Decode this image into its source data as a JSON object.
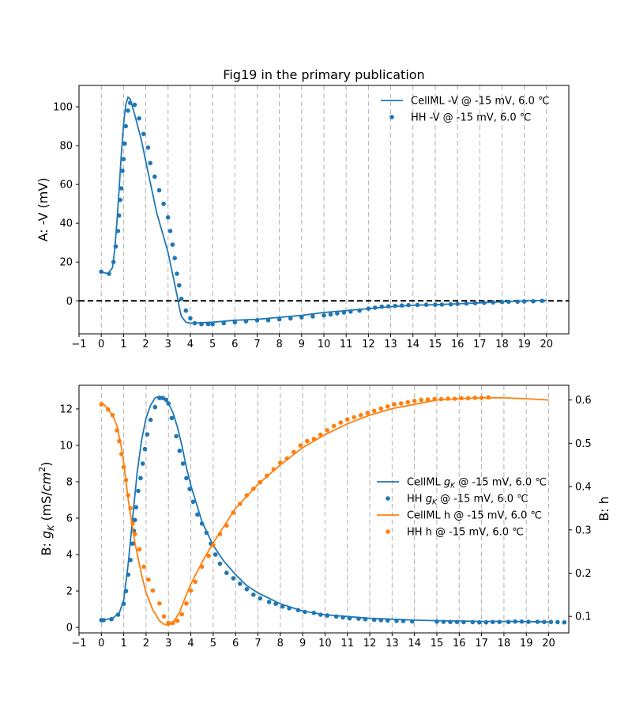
{
  "chart_data": [
    {
      "type": "line",
      "title": "Fig19 in the primary publication",
      "ylabel": "A: -V (mV)",
      "xlim": [
        -1,
        21
      ],
      "ylim": [
        -17,
        111
      ],
      "x_ticks": [
        "−1",
        "0",
        "1",
        "2",
        "3",
        "4",
        "5",
        "6",
        "7",
        "8",
        "9",
        "10",
        "11",
        "12",
        "13",
        "14",
        "15",
        "16",
        "17",
        "18",
        "19",
        "20"
      ],
      "y_ticks": [
        "0",
        "20",
        "40",
        "60",
        "80",
        "100"
      ],
      "y_tick_values": [
        0,
        20,
        40,
        60,
        80,
        100
      ],
      "vertical_gridlines": true,
      "reference_line": {
        "y": 0,
        "style": "black dashed"
      },
      "legend_position": "top-right",
      "series": [
        {
          "name": "CellML -V @ -15 mV, 6.0 ℃",
          "kind": "line",
          "color": "#1f77b4",
          "x": [
            0,
            0.3,
            0.5,
            0.6,
            0.7,
            0.8,
            0.9,
            1.0,
            1.1,
            1.2,
            1.3,
            1.5,
            1.8,
            2.0,
            2.2,
            2.5,
            2.8,
            3.0,
            3.2,
            3.4,
            3.5,
            3.6,
            3.8,
            4.0,
            5,
            6,
            7,
            8,
            9,
            10,
            11,
            12,
            13,
            14,
            15,
            16,
            17,
            18,
            19,
            20
          ],
          "y": [
            15,
            14,
            17,
            26,
            40,
            57,
            75,
            91,
            101,
            105,
            104,
            96,
            83,
            72,
            61,
            45,
            33,
            25,
            14,
            3,
            -3,
            -8,
            -11,
            -11.5,
            -11,
            -10,
            -9.5,
            -8.5,
            -7.5,
            -6,
            -5,
            -4,
            -3,
            -2.3,
            -2,
            -1.5,
            -1,
            -0.5,
            0,
            0.3
          ]
        },
        {
          "name": "HH -V @ -15 mV, 6.0 ℃",
          "kind": "scatter",
          "color": "#1f77b4",
          "x": [
            0,
            0.35,
            0.55,
            0.65,
            0.75,
            0.8,
            0.85,
            0.9,
            0.95,
            1.0,
            1.05,
            1.1,
            1.2,
            1.3,
            1.5,
            1.7,
            1.9,
            2.1,
            2.2,
            2.4,
            2.6,
            2.8,
            3.0,
            3.1,
            3.2,
            3.3,
            3.4,
            3.5,
            3.6,
            3.8,
            4.0,
            4.2,
            4.5,
            4.8,
            5.0,
            5.5,
            6.0,
            6.5,
            7.0,
            7.5,
            8.0,
            8.5,
            9.0,
            9.5,
            10.0,
            10.3,
            10.6,
            10.9,
            11.2,
            11.6,
            12.0,
            12.3,
            12.6,
            12.9,
            13.2,
            13.5,
            13.8,
            14.2,
            14.6,
            15.0,
            15.3,
            15.7,
            16.0,
            16.4,
            16.8,
            17.2,
            17.6,
            18.0,
            18.3,
            18.7,
            19.0,
            19.4,
            19.8
          ],
          "y": [
            15,
            14,
            20,
            28,
            36,
            44,
            52,
            58,
            67,
            73,
            81,
            90,
            98,
            102,
            101,
            94,
            86,
            79,
            71,
            64,
            57,
            50,
            43,
            36,
            29,
            22,
            14,
            8,
            1,
            -5,
            -9,
            -11.5,
            -12,
            -12,
            -12,
            -11.5,
            -11,
            -10.5,
            -10,
            -10,
            -9.5,
            -9,
            -8.5,
            -8,
            -7.5,
            -7,
            -6.5,
            -6,
            -5.5,
            -5,
            -4,
            -3.5,
            -3,
            -2.8,
            -2.6,
            -2.4,
            -2.2,
            -2.1,
            -2,
            -2,
            -1.9,
            -1.8,
            -1.6,
            -1.4,
            -1.2,
            -1,
            -0.8,
            -0.6,
            -0.5,
            -0.4,
            -0.3,
            -0.2,
            0
          ]
        }
      ]
    },
    {
      "type": "line",
      "ylabel": "B: g_K (mS/cm^2)",
      "ylabel_right": "B: h",
      "xlim": [
        -1,
        20.9
      ],
      "ylim": [
        -0.3,
        13.3
      ],
      "ylim_right": [
        0.062,
        0.634
      ],
      "x_ticks": [
        "−1",
        "0",
        "1",
        "2",
        "3",
        "4",
        "5",
        "6",
        "7",
        "8",
        "9",
        "10",
        "11",
        "12",
        "13",
        "14",
        "15",
        "16",
        "17",
        "18",
        "19",
        "20"
      ],
      "y_ticks": [
        "0",
        "2",
        "4",
        "6",
        "8",
        "10",
        "12"
      ],
      "y_tick_values": [
        0,
        2,
        4,
        6,
        8,
        10,
        12
      ],
      "y_right_ticks": [
        "0.1",
        "0.2",
        "0.3",
        "0.4",
        "0.5",
        "0.6"
      ],
      "y_right_tick_values": [
        0.1,
        0.2,
        0.3,
        0.4,
        0.5,
        0.6
      ],
      "vertical_gridlines": true,
      "legend_position": "center-right",
      "series": [
        {
          "name": "CellML g_K @ -15 mV, 6.0 ℃",
          "kind": "line",
          "color": "#1f77b4",
          "axis": "left",
          "x": [
            0,
            0.5,
            0.8,
            1.0,
            1.2,
            1.4,
            1.6,
            1.8,
            2.0,
            2.2,
            2.4,
            2.6,
            2.8,
            3.0,
            3.2,
            3.4,
            3.6,
            3.8,
            4.0,
            4.5,
            5.0,
            5.5,
            6.0,
            6.5,
            7.0,
            8,
            9,
            10,
            11,
            12,
            13,
            14,
            15,
            16,
            17,
            18,
            19,
            20
          ],
          "y": [
            0.4,
            0.5,
            0.8,
            1.5,
            3.5,
            6,
            8.5,
            10.3,
            11.5,
            12.2,
            12.6,
            12.7,
            12.6,
            12.3,
            11.8,
            11,
            10,
            8.8,
            7.8,
            5.8,
            4.5,
            3.6,
            2.9,
            2.3,
            1.9,
            1.3,
            0.9,
            0.7,
            0.6,
            0.5,
            0.45,
            0.4,
            0.37,
            0.35,
            0.33,
            0.33,
            0.32,
            0.3
          ]
        },
        {
          "name": "HH g_K @ -15 mV, 6.0 ℃",
          "kind": "scatter",
          "color": "#1f77b4",
          "axis": "left",
          "x": [
            0,
            0.1,
            0.45,
            0.75,
            1.0,
            1.1,
            1.2,
            1.3,
            1.4,
            1.45,
            1.5,
            1.55,
            1.65,
            1.75,
            1.85,
            1.95,
            2.05,
            2.2,
            2.4,
            2.6,
            2.75,
            2.9,
            3.0,
            3.15,
            3.35,
            3.5,
            3.65,
            3.8,
            3.95,
            4.1,
            4.3,
            4.5,
            4.7,
            4.9,
            5.1,
            5.3,
            5.6,
            5.9,
            6.2,
            6.5,
            6.8,
            7.1,
            7.5,
            7.8,
            8.1,
            8.4,
            8.8,
            9.1,
            9.5,
            9.8,
            10.1,
            10.5,
            10.8,
            11.1,
            11.5,
            11.8,
            12.2,
            12.5,
            12.8,
            13.2,
            13.5,
            13.9,
            15.0,
            15.3,
            15.6,
            15.9,
            16.2,
            16.6,
            16.9,
            17.2,
            17.5,
            17.8,
            18.2,
            18.5,
            18.8,
            19.1,
            19.5,
            19.8,
            20.1,
            20.4,
            20.7
          ],
          "y": [
            0.4,
            0.4,
            0.45,
            0.7,
            1.3,
            2.0,
            2.9,
            3.7,
            4.6,
            5.3,
            5.9,
            6.6,
            7.5,
            8.2,
            9.0,
            9.8,
            10.6,
            11.4,
            12.1,
            12.6,
            12.6,
            12.5,
            12.3,
            11.5,
            10.5,
            9.7,
            9.0,
            8.2,
            7.6,
            6.9,
            6.2,
            5.7,
            5.2,
            4.6,
            4.0,
            3.5,
            3.0,
            2.7,
            2.4,
            2.1,
            1.8,
            1.6,
            1.4,
            1.3,
            1.15,
            1.05,
            0.95,
            0.85,
            0.8,
            0.7,
            0.65,
            0.6,
            0.55,
            0.5,
            0.48,
            0.45,
            0.42,
            0.4,
            0.38,
            0.36,
            0.35,
            0.33,
            0.32,
            0.31,
            0.3,
            0.3,
            0.29,
            0.29,
            0.28,
            0.28,
            0.3,
            0.3,
            0.3,
            0.32,
            0.32,
            0.31,
            0.31,
            0.3,
            0.3,
            0.29,
            0.28
          ]
        },
        {
          "name": "CellML h @ -15 mV, 6.0 ℃",
          "kind": "line",
          "color": "#ff7f0e",
          "axis": "right",
          "x": [
            0,
            0.2,
            0.5,
            0.7,
            0.9,
            1.0,
            1.2,
            1.5,
            1.8,
            2.0,
            2.3,
            2.6,
            2.8,
            3.0,
            3.2,
            3.5,
            3.8,
            4.0,
            4.5,
            5,
            5.5,
            6,
            7,
            8,
            9,
            10,
            11,
            12,
            13,
            14,
            15,
            16,
            17,
            18,
            19,
            20
          ],
          "y": [
            0.595,
            0.585,
            0.565,
            0.54,
            0.49,
            0.455,
            0.37,
            0.27,
            0.195,
            0.155,
            0.115,
            0.09,
            0.082,
            0.08,
            0.085,
            0.11,
            0.15,
            0.175,
            0.225,
            0.27,
            0.31,
            0.35,
            0.405,
            0.45,
            0.49,
            0.52,
            0.545,
            0.565,
            0.58,
            0.59,
            0.6,
            0.603,
            0.605,
            0.605,
            0.603,
            0.6
          ]
        },
        {
          "name": "HH h @ -15 mV, 6.0 ℃",
          "kind": "scatter",
          "color": "#ff7f0e",
          "axis": "right",
          "x": [
            0,
            0.3,
            0.5,
            0.7,
            0.8,
            0.9,
            1.0,
            1.1,
            1.2,
            1.3,
            1.4,
            1.5,
            1.7,
            1.9,
            2.1,
            2.3,
            2.6,
            2.8,
            3.0,
            3.2,
            3.4,
            3.6,
            3.8,
            4.0,
            4.2,
            4.5,
            4.8,
            5.0,
            5.3,
            5.6,
            5.9,
            6.2,
            6.5,
            6.8,
            7.1,
            7.4,
            7.7,
            8.0,
            8.3,
            8.6,
            8.9,
            9.2,
            9.5,
            9.8,
            10.1,
            10.4,
            10.7,
            11.0,
            11.3,
            11.6,
            11.9,
            12.2,
            12.5,
            12.8,
            13.1,
            13.4,
            13.7,
            14.0,
            14.3,
            14.6,
            14.9,
            15.2,
            15.5,
            15.8,
            16.1,
            16.4,
            16.7,
            17.0,
            17.3
          ],
          "y": [
            0.59,
            0.578,
            0.565,
            0.53,
            0.505,
            0.475,
            0.445,
            0.415,
            0.38,
            0.35,
            0.315,
            0.29,
            0.255,
            0.215,
            0.185,
            0.16,
            0.13,
            0.1,
            0.085,
            0.085,
            0.09,
            0.105,
            0.13,
            0.16,
            0.18,
            0.215,
            0.24,
            0.265,
            0.29,
            0.31,
            0.34,
            0.36,
            0.38,
            0.395,
            0.41,
            0.425,
            0.44,
            0.455,
            0.465,
            0.48,
            0.495,
            0.505,
            0.51,
            0.52,
            0.53,
            0.54,
            0.548,
            0.555,
            0.56,
            0.565,
            0.57,
            0.575,
            0.58,
            0.585,
            0.59,
            0.592,
            0.595,
            0.598,
            0.6,
            0.601,
            0.602,
            0.602,
            0.603,
            0.603,
            0.604,
            0.604,
            0.605,
            0.605,
            0.606
          ]
        }
      ]
    }
  ]
}
